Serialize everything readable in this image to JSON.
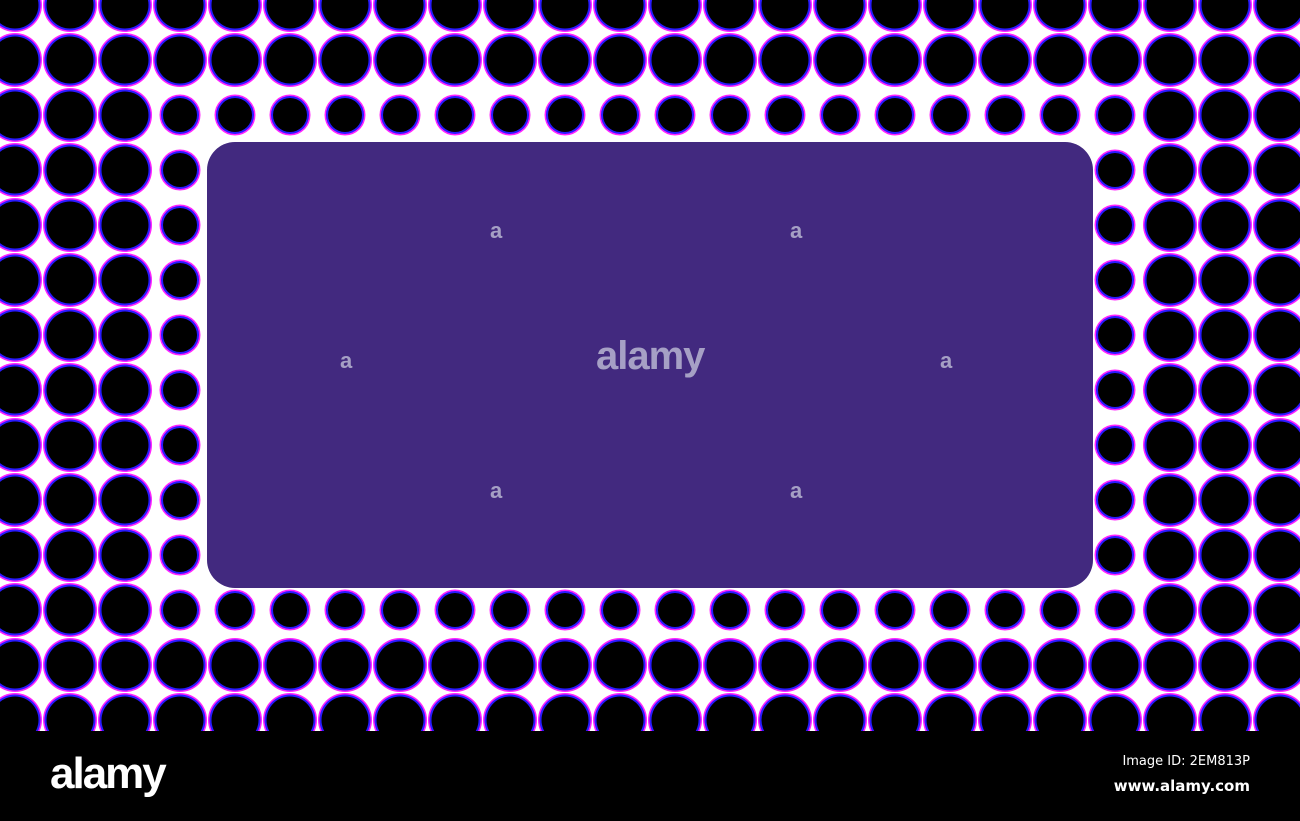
{
  "colors": {
    "background": "#ffffff",
    "dot": "#000000",
    "dot_ring_inner": "#2a1aff",
    "dot_ring_outer": "#ff22ff",
    "panel": "#42297f",
    "footer": "#000000"
  },
  "watermark": {
    "center": "alamy",
    "small_mark": "a",
    "logo": "alamy"
  },
  "footer": {
    "image_id": "Image ID: 2EM813P",
    "site": "www.alamy.com"
  }
}
